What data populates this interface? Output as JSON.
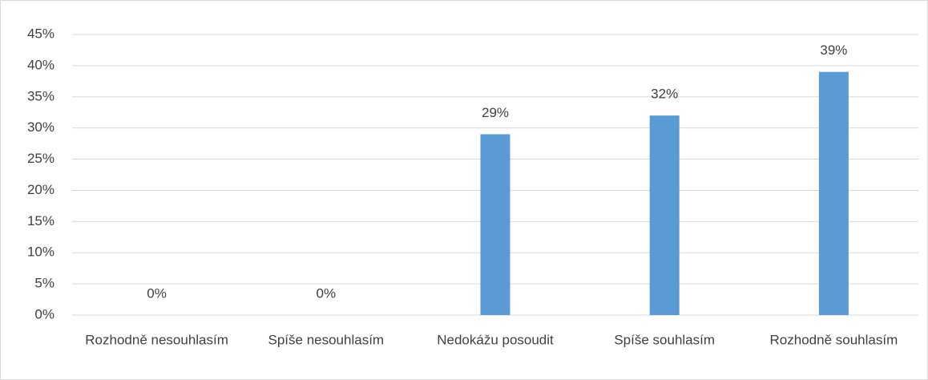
{
  "chart_data": {
    "type": "bar",
    "categories": [
      "Rozhodně nesouhlasím",
      "Spíše nesouhlasím",
      "Nedokážu posoudit",
      "Spíše souhlasím",
      "Rozhodně souhlasím"
    ],
    "values": [
      0,
      0,
      29,
      32,
      39
    ],
    "value_labels": [
      "0%",
      "0%",
      "29%",
      "32%",
      "39%"
    ],
    "color": "#5b9bd5",
    "ylim": [
      0,
      45
    ],
    "yticks": [
      {
        "value": 0,
        "label": "0%"
      },
      {
        "value": 5,
        "label": "5%"
      },
      {
        "value": 10,
        "label": "10%"
      },
      {
        "value": 15,
        "label": "15%"
      },
      {
        "value": 20,
        "label": "20%"
      },
      {
        "value": 25,
        "label": "25%"
      },
      {
        "value": 30,
        "label": "30%"
      },
      {
        "value": 35,
        "label": "35%"
      },
      {
        "value": 40,
        "label": "40%"
      },
      {
        "value": 45,
        "label": "45%"
      }
    ],
    "grid": true
  }
}
